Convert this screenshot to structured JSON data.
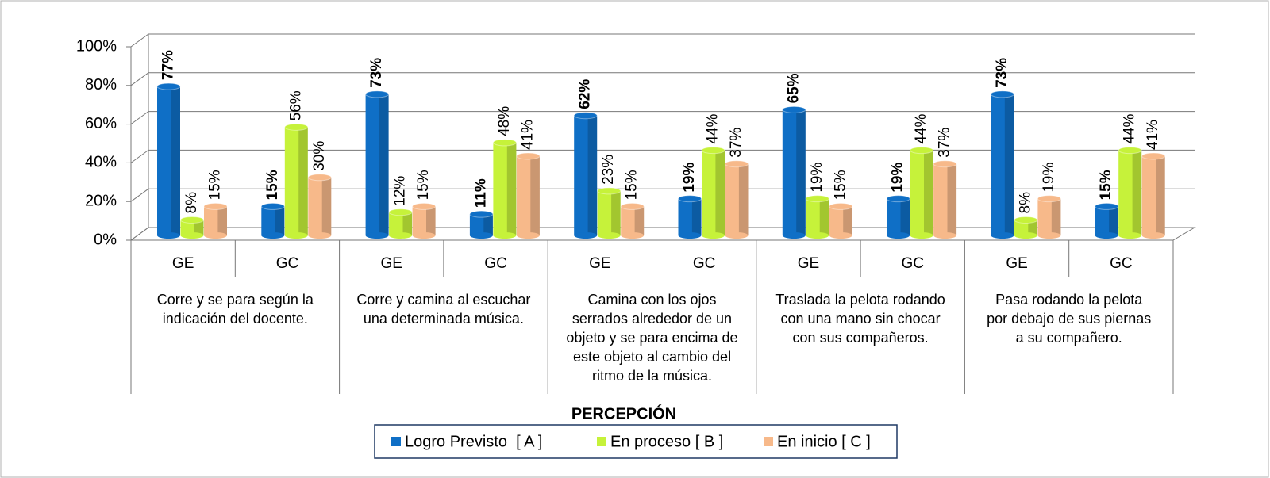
{
  "chart_data": {
    "type": "bar3d",
    "xlabel": "PERCEPCIÓN",
    "categories": [
      "GE",
      "GC",
      "GE",
      "GC",
      "GE",
      "GC",
      "GE",
      "GC",
      "GE",
      "GC"
    ],
    "groups": [
      {
        "lines": [
          "Corre y se para según la",
          "indicación del docente."
        ]
      },
      {
        "lines": [
          "Corre y camina al escuchar",
          "una determinada música."
        ]
      },
      {
        "lines": [
          "Camina con los ojos",
          "serrados alrededor de un",
          "objeto y se para encima de",
          "este objeto al cambio del",
          "ritmo de la música."
        ]
      },
      {
        "lines": [
          "Traslada la pelota  rodando",
          "con una mano  sin chocar",
          "con sus compañeros."
        ]
      },
      {
        "lines": [
          "Pasa rodando la pelota",
          "por debajo  de sus piernas",
          "a su compañero."
        ]
      }
    ],
    "series": [
      {
        "name": "Logro Previsto  [ A ]",
        "color": "#0f6fc6",
        "bold_value_labels": true,
        "values": [
          77,
          15,
          73,
          11,
          62,
          19,
          65,
          19,
          73,
          15
        ],
        "value_labels": [
          "77%",
          "15%",
          "73%",
          "11%",
          "62%",
          "19%",
          "65%",
          "19%",
          "73%",
          "15%"
        ]
      },
      {
        "name": "En proceso [ B ]",
        "color": "#c6f23a",
        "bold_value_labels": false,
        "values": [
          8,
          56,
          12,
          48,
          23,
          44,
          19,
          44,
          8,
          44
        ],
        "value_labels": [
          "8%",
          "56%",
          "12%",
          "48%",
          "23%",
          "44%",
          "19%",
          "44%",
          "8%",
          "44%"
        ]
      },
      {
        "name": "En inicio [ C ]",
        "color": "#f7b98a",
        "bold_value_labels": false,
        "values": [
          15,
          30,
          15,
          41,
          15,
          37,
          15,
          37,
          19,
          41
        ],
        "value_labels": [
          "15%",
          "30%",
          "15%",
          "41%",
          "15%",
          "37%",
          "15%",
          "37%",
          "19%",
          "41%"
        ]
      }
    ],
    "ylim": [
      0,
      100
    ],
    "yticks": [
      {
        "value": 0,
        "label": "0%"
      },
      {
        "value": 20,
        "label": "20%"
      },
      {
        "value": 40,
        "label": "40%"
      },
      {
        "value": 60,
        "label": "60%"
      },
      {
        "value": 80,
        "label": "80%"
      },
      {
        "value": 100,
        "label": "100%"
      }
    ],
    "grid": true,
    "legend": "bottom"
  }
}
